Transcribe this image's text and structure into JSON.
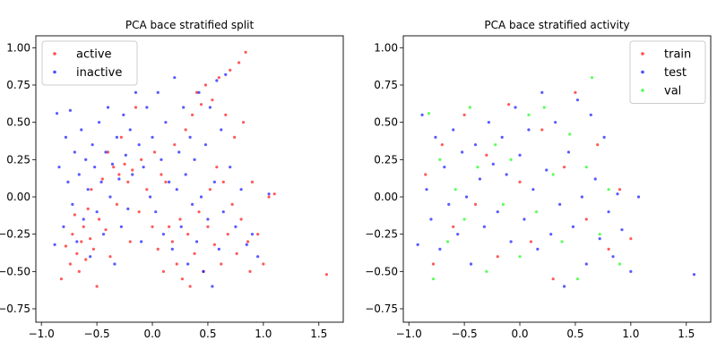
{
  "chart_data": [
    {
      "type": "scatter",
      "title": "PCA bace stratified split",
      "xlim": [
        -1.05,
        1.72
      ],
      "ylim": [
        -0.84,
        1.08
      ],
      "xticks": [
        -1.0,
        -0.5,
        0.0,
        0.5,
        1.0,
        1.5
      ],
      "xtick_labels": [
        "−1.0",
        "−0.5",
        "0.0",
        "0.5",
        "1.0",
        "1.5"
      ],
      "yticks": [
        1.0,
        0.75,
        0.5,
        0.25,
        0.0,
        -0.25,
        -0.5,
        -0.75
      ],
      "ytick_labels": [
        "1.00",
        "0.75",
        "0.50",
        "0.25",
        "0.00",
        "−0.25",
        "−0.50",
        "−0.75"
      ],
      "legend_position": "top-left",
      "series": [
        {
          "name": "active",
          "color": "#ff0000",
          "points": [
            [
              -0.82,
              -0.55
            ],
            [
              -0.78,
              -0.33
            ],
            [
              -0.74,
              -0.45
            ],
            [
              -0.72,
              -0.25
            ],
            [
              -0.7,
              -0.12
            ],
            [
              -0.68,
              -0.38
            ],
            [
              -0.66,
              -0.5
            ],
            [
              -0.64,
              -0.3
            ],
            [
              -0.62,
              -0.2
            ],
            [
              -0.6,
              -0.42
            ],
            [
              -0.58,
              -0.08
            ],
            [
              -0.56,
              -0.28
            ],
            [
              -0.55,
              0.05
            ],
            [
              -0.53,
              -0.35
            ],
            [
              -0.5,
              -0.6
            ],
            [
              -0.48,
              -0.15
            ],
            [
              -0.45,
              0.12
            ],
            [
              -0.42,
              -0.22
            ],
            [
              -0.4,
              0.3
            ],
            [
              -0.38,
              -0.4
            ],
            [
              -0.35,
              0.2
            ],
            [
              -0.32,
              -0.05
            ],
            [
              -0.3,
              0.15
            ],
            [
              -0.28,
              0.4
            ],
            [
              -0.25,
              0.22
            ],
            [
              -0.22,
              0.1
            ],
            [
              -0.2,
              -0.3
            ],
            [
              -0.18,
              0.18
            ],
            [
              -0.15,
              0.6
            ],
            [
              -0.12,
              -0.1
            ],
            [
              -0.1,
              0.25
            ],
            [
              -0.05,
              0.05
            ],
            [
              0.0,
              -0.2
            ],
            [
              0.02,
              0.3
            ],
            [
              0.05,
              -0.35
            ],
            [
              0.08,
              0.15
            ],
            [
              0.1,
              -0.5
            ],
            [
              0.12,
              0.1
            ],
            [
              0.15,
              -0.2
            ],
            [
              0.18,
              -0.3
            ],
            [
              0.2,
              0.35
            ],
            [
              0.22,
              -0.45
            ],
            [
              0.25,
              -0.15
            ],
            [
              0.27,
              -0.55
            ],
            [
              0.3,
              0.45
            ],
            [
              0.32,
              -0.25
            ],
            [
              0.34,
              -0.6
            ],
            [
              0.36,
              0.55
            ],
            [
              0.38,
              -0.38
            ],
            [
              0.4,
              0.7
            ],
            [
              0.42,
              -0.1
            ],
            [
              0.44,
              0.62
            ],
            [
              0.46,
              -0.5
            ],
            [
              0.48,
              0.75
            ],
            [
              0.5,
              -0.2
            ],
            [
              0.52,
              0.05
            ],
            [
              0.54,
              0.65
            ],
            [
              0.56,
              -0.32
            ],
            [
              0.58,
              0.2
            ],
            [
              0.6,
              0.8
            ],
            [
              0.62,
              -0.45
            ],
            [
              0.64,
              0.1
            ],
            [
              0.66,
              0.55
            ],
            [
              0.68,
              -0.25
            ],
            [
              0.7,
              0.85
            ],
            [
              0.72,
              -0.05
            ],
            [
              0.74,
              0.4
            ],
            [
              0.76,
              -0.38
            ],
            [
              0.78,
              0.9
            ],
            [
              0.8,
              -0.15
            ],
            [
              0.82,
              0.5
            ],
            [
              0.84,
              0.97
            ],
            [
              0.86,
              -0.3
            ],
            [
              0.88,
              -0.5
            ],
            [
              0.9,
              0.1
            ],
            [
              0.95,
              -0.25
            ],
            [
              1.0,
              -0.45
            ],
            [
              1.05,
              0.0
            ],
            [
              1.1,
              0.02
            ],
            [
              1.57,
              -0.52
            ]
          ]
        },
        {
          "name": "inactive",
          "color": "#0000ff",
          "points": [
            [
              -0.88,
              -0.32
            ],
            [
              -0.86,
              0.56
            ],
            [
              -0.84,
              0.2
            ],
            [
              -0.8,
              -0.2
            ],
            [
              -0.78,
              0.4
            ],
            [
              -0.76,
              0.1
            ],
            [
              -0.74,
              0.58
            ],
            [
              -0.72,
              -0.05
            ],
            [
              -0.7,
              0.3
            ],
            [
              -0.68,
              -0.3
            ],
            [
              -0.66,
              0.15
            ],
            [
              -0.64,
              0.45
            ],
            [
              -0.62,
              -0.15
            ],
            [
              -0.6,
              0.25
            ],
            [
              -0.58,
              0.05
            ],
            [
              -0.56,
              -0.4
            ],
            [
              -0.54,
              0.35
            ],
            [
              -0.52,
              0.2
            ],
            [
              -0.5,
              -0.1
            ],
            [
              -0.48,
              0.5
            ],
            [
              -0.46,
              0.1
            ],
            [
              -0.44,
              -0.25
            ],
            [
              -0.42,
              0.3
            ],
            [
              -0.4,
              0.6
            ],
            [
              -0.38,
              0.0
            ],
            [
              -0.36,
              0.22
            ],
            [
              -0.34,
              -0.45
            ],
            [
              -0.32,
              0.4
            ],
            [
              -0.3,
              0.12
            ],
            [
              -0.28,
              -0.2
            ],
            [
              -0.26,
              0.55
            ],
            [
              -0.24,
              0.28
            ],
            [
              -0.22,
              -0.08
            ],
            [
              -0.2,
              0.45
            ],
            [
              -0.18,
              0.15
            ],
            [
              -0.15,
              0.7
            ],
            [
              -0.12,
              0.35
            ],
            [
              -0.1,
              -0.3
            ],
            [
              -0.08,
              0.2
            ],
            [
              -0.05,
              0.6
            ],
            [
              -0.02,
              0.0
            ],
            [
              0.0,
              0.4
            ],
            [
              0.03,
              -0.1
            ],
            [
              0.05,
              0.7
            ],
            [
              0.08,
              0.25
            ],
            [
              0.1,
              -0.25
            ],
            [
              0.12,
              0.5
            ],
            [
              0.15,
              0.1
            ],
            [
              0.18,
              -0.35
            ],
            [
              0.2,
              0.8
            ],
            [
              0.22,
              0.05
            ],
            [
              0.24,
              0.3
            ],
            [
              0.26,
              -0.2
            ],
            [
              0.28,
              0.6
            ],
            [
              0.3,
              0.15
            ],
            [
              0.32,
              -0.45
            ],
            [
              0.34,
              0.4
            ],
            [
              0.36,
              -0.05
            ],
            [
              0.38,
              0.25
            ],
            [
              0.4,
              -0.3
            ],
            [
              0.42,
              0.7
            ],
            [
              0.44,
              0.0
            ],
            [
              0.46,
              -0.5
            ],
            [
              0.48,
              0.35
            ],
            [
              0.5,
              -0.15
            ],
            [
              0.52,
              0.6
            ],
            [
              0.54,
              -0.6
            ],
            [
              0.56,
              0.1
            ],
            [
              0.58,
              0.78
            ],
            [
              0.6,
              -0.35
            ],
            [
              0.62,
              0.45
            ],
            [
              0.64,
              -0.1
            ],
            [
              0.66,
              0.82
            ],
            [
              0.7,
              0.2
            ],
            [
              0.75,
              -0.2
            ],
            [
              0.8,
              0.05
            ],
            [
              0.85,
              -0.32
            ],
            [
              0.9,
              -0.25
            ],
            [
              0.95,
              -0.4
            ],
            [
              1.05,
              0.02
            ]
          ]
        }
      ]
    },
    {
      "type": "scatter",
      "title": "PCA bace stratified activity",
      "xlim": [
        -1.05,
        1.72
      ],
      "ylim": [
        -0.84,
        1.08
      ],
      "xticks": [
        -1.0,
        -0.5,
        0.0,
        0.5,
        1.0,
        1.5
      ],
      "xtick_labels": [
        "−1.0",
        "−0.5",
        "0.0",
        "0.5",
        "1.0",
        "1.5"
      ],
      "yticks": [
        1.0,
        0.75,
        0.5,
        0.25,
        0.0,
        -0.25,
        -0.5,
        -0.75
      ],
      "ytick_labels": [
        "1.00",
        "0.75",
        "0.50",
        "0.25",
        "0.00",
        "−0.25",
        "−0.50",
        "−0.75"
      ],
      "legend_position": "top-right",
      "series": [
        {
          "name": "train",
          "color": "#ff0000",
          "points": [
            [
              -0.85,
              0.15
            ],
            [
              -0.78,
              -0.45
            ],
            [
              -0.7,
              0.35
            ],
            [
              -0.6,
              -0.2
            ],
            [
              -0.5,
              0.55
            ],
            [
              -0.4,
              -0.05
            ],
            [
              -0.3,
              0.28
            ],
            [
              -0.2,
              -0.4
            ],
            [
              -0.1,
              0.62
            ],
            [
              0.0,
              0.1
            ],
            [
              0.1,
              -0.3
            ],
            [
              0.2,
              0.45
            ],
            [
              0.3,
              -0.55
            ],
            [
              0.4,
              0.2
            ],
            [
              0.5,
              0.7
            ],
            [
              0.6,
              -0.15
            ],
            [
              0.7,
              0.35
            ],
            [
              0.8,
              -0.35
            ],
            [
              0.9,
              0.05
            ],
            [
              1.0,
              -0.28
            ]
          ]
        },
        {
          "name": "test",
          "color": "#0000ff",
          "points": [
            [
              -0.92,
              -0.32
            ],
            [
              -0.88,
              0.55
            ],
            [
              -0.84,
              0.05
            ],
            [
              -0.8,
              -0.15
            ],
            [
              -0.76,
              0.4
            ],
            [
              -0.72,
              -0.35
            ],
            [
              -0.68,
              0.2
            ],
            [
              -0.64,
              -0.05
            ],
            [
              -0.6,
              0.45
            ],
            [
              -0.56,
              -0.25
            ],
            [
              -0.52,
              0.3
            ],
            [
              -0.48,
              0.0
            ],
            [
              -0.44,
              -0.45
            ],
            [
              -0.4,
              0.35
            ],
            [
              -0.36,
              0.12
            ],
            [
              -0.32,
              -0.2
            ],
            [
              -0.28,
              0.5
            ],
            [
              -0.24,
              0.22
            ],
            [
              -0.2,
              -0.1
            ],
            [
              -0.16,
              0.4
            ],
            [
              -0.12,
              0.15
            ],
            [
              -0.08,
              -0.3
            ],
            [
              -0.04,
              0.6
            ],
            [
              0.0,
              0.28
            ],
            [
              0.04,
              -0.15
            ],
            [
              0.08,
              0.45
            ],
            [
              0.12,
              0.05
            ],
            [
              0.16,
              -0.35
            ],
            [
              0.2,
              0.7
            ],
            [
              0.24,
              0.18
            ],
            [
              0.28,
              -0.25
            ],
            [
              0.32,
              0.5
            ],
            [
              0.36,
              -0.05
            ],
            [
              0.4,
              -0.6
            ],
            [
              0.44,
              0.3
            ],
            [
              0.48,
              -0.2
            ],
            [
              0.52,
              0.65
            ],
            [
              0.56,
              0.0
            ],
            [
              0.6,
              -0.45
            ],
            [
              0.64,
              0.55
            ],
            [
              0.68,
              0.12
            ],
            [
              0.72,
              -0.28
            ],
            [
              0.76,
              0.4
            ],
            [
              0.8,
              -0.1
            ],
            [
              0.84,
              -0.4
            ],
            [
              0.88,
              0.02
            ],
            [
              0.92,
              -0.22
            ],
            [
              1.0,
              -0.5
            ],
            [
              1.07,
              0.0
            ],
            [
              1.57,
              -0.52
            ]
          ]
        },
        {
          "name": "val",
          "color": "#00ff00",
          "points": [
            [
              -0.82,
              0.56
            ],
            [
              -0.78,
              -0.55
            ],
            [
              -0.72,
              0.25
            ],
            [
              -0.65,
              -0.3
            ],
            [
              -0.58,
              0.05
            ],
            [
              -0.5,
              -0.15
            ],
            [
              -0.45,
              0.6
            ],
            [
              -0.38,
              0.2
            ],
            [
              -0.3,
              -0.5
            ],
            [
              -0.22,
              0.35
            ],
            [
              -0.15,
              -0.05
            ],
            [
              -0.08,
              0.25
            ],
            [
              0.0,
              -0.4
            ],
            [
              0.08,
              0.55
            ],
            [
              0.15,
              -0.1
            ],
            [
              0.22,
              0.6
            ],
            [
              0.3,
              0.15
            ],
            [
              0.38,
              -0.3
            ],
            [
              0.45,
              0.42
            ],
            [
              0.52,
              -0.55
            ],
            [
              0.6,
              0.2
            ],
            [
              0.65,
              0.8
            ],
            [
              0.72,
              -0.25
            ],
            [
              0.8,
              0.05
            ],
            [
              0.9,
              -0.45
            ]
          ]
        }
      ]
    }
  ]
}
